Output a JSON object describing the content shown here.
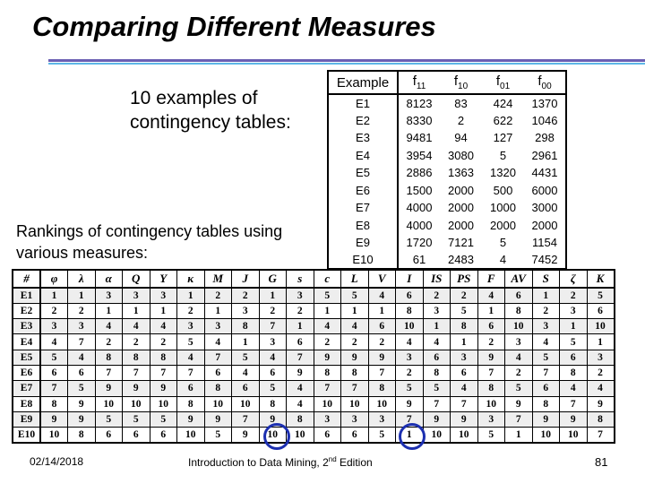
{
  "slide": {
    "title": "Comparing Different Measures",
    "intro_text": "10 examples of contingency tables:",
    "rankings_text": "Rankings of contingency tables using various measures:"
  },
  "contingency_table": {
    "headers": [
      "Example",
      "f11",
      "f10",
      "f01",
      "f00"
    ],
    "rows": [
      [
        "E1",
        "8123",
        "83",
        "424",
        "1370"
      ],
      [
        "E2",
        "8330",
        "2",
        "622",
        "1046"
      ],
      [
        "E3",
        "9481",
        "94",
        "127",
        "298"
      ],
      [
        "E4",
        "3954",
        "3080",
        "5",
        "2961"
      ],
      [
        "E5",
        "2886",
        "1363",
        "1320",
        "4431"
      ],
      [
        "E6",
        "1500",
        "2000",
        "500",
        "6000"
      ],
      [
        "E7",
        "4000",
        "2000",
        "1000",
        "3000"
      ],
      [
        "E8",
        "4000",
        "2000",
        "2000",
        "2000"
      ],
      [
        "E9",
        "1720",
        "7121",
        "5",
        "1154"
      ],
      [
        "E10",
        "61",
        "2483",
        "4",
        "7452"
      ]
    ]
  },
  "rankings_table": {
    "headers": [
      "#",
      "φ",
      "λ",
      "α",
      "Q",
      "Y",
      "κ",
      "M",
      "J",
      "G",
      "s",
      "c",
      "L",
      "V",
      "I",
      "IS",
      "PS",
      "F",
      "AV",
      "S",
      "ζ",
      "K"
    ],
    "rows": [
      [
        "E1",
        "1",
        "1",
        "3",
        "3",
        "3",
        "1",
        "2",
        "2",
        "1",
        "3",
        "5",
        "5",
        "4",
        "6",
        "2",
        "2",
        "4",
        "6",
        "1",
        "2",
        "5"
      ],
      [
        "E2",
        "2",
        "2",
        "1",
        "1",
        "1",
        "2",
        "1",
        "3",
        "2",
        "2",
        "1",
        "1",
        "1",
        "8",
        "3",
        "5",
        "1",
        "8",
        "2",
        "3",
        "6"
      ],
      [
        "E3",
        "3",
        "3",
        "4",
        "4",
        "4",
        "3",
        "3",
        "8",
        "7",
        "1",
        "4",
        "4",
        "6",
        "10",
        "1",
        "8",
        "6",
        "10",
        "3",
        "1",
        "10"
      ],
      [
        "E4",
        "4",
        "7",
        "2",
        "2",
        "2",
        "5",
        "4",
        "1",
        "3",
        "6",
        "2",
        "2",
        "2",
        "4",
        "4",
        "1",
        "2",
        "3",
        "4",
        "5",
        "1"
      ],
      [
        "E5",
        "5",
        "4",
        "8",
        "8",
        "8",
        "4",
        "7",
        "5",
        "4",
        "7",
        "9",
        "9",
        "9",
        "3",
        "6",
        "3",
        "9",
        "4",
        "5",
        "6",
        "3"
      ],
      [
        "E6",
        "6",
        "6",
        "7",
        "7",
        "7",
        "7",
        "6",
        "4",
        "6",
        "9",
        "8",
        "8",
        "7",
        "2",
        "8",
        "6",
        "7",
        "2",
        "7",
        "8",
        "2"
      ],
      [
        "E7",
        "7",
        "5",
        "9",
        "9",
        "9",
        "6",
        "8",
        "6",
        "5",
        "4",
        "7",
        "7",
        "8",
        "5",
        "5",
        "4",
        "8",
        "5",
        "6",
        "4",
        "4"
      ],
      [
        "E8",
        "8",
        "9",
        "10",
        "10",
        "10",
        "8",
        "10",
        "10",
        "8",
        "4",
        "10",
        "10",
        "10",
        "9",
        "7",
        "7",
        "10",
        "9",
        "8",
        "7",
        "9"
      ],
      [
        "E9",
        "9",
        "9",
        "5",
        "5",
        "5",
        "9",
        "9",
        "7",
        "9",
        "8",
        "3",
        "3",
        "3",
        "7",
        "9",
        "9",
        "3",
        "7",
        "9",
        "9",
        "8"
      ],
      [
        "E10",
        "10",
        "8",
        "6",
        "6",
        "6",
        "10",
        "5",
        "9",
        "10",
        "10",
        "6",
        "6",
        "5",
        "1",
        "10",
        "10",
        "5",
        "1",
        "10",
        "10",
        "7"
      ]
    ]
  },
  "footer": {
    "date": "02/14/2018",
    "course": "Introduction to Data Mining, 2",
    "course_sup": "nd",
    "course_tail": " Edition",
    "page": "81"
  },
  "colors": {
    "rule_top": "#6b5fb3",
    "rule_bottom": "#5db6e6",
    "circle": "#1c2fb0"
  }
}
